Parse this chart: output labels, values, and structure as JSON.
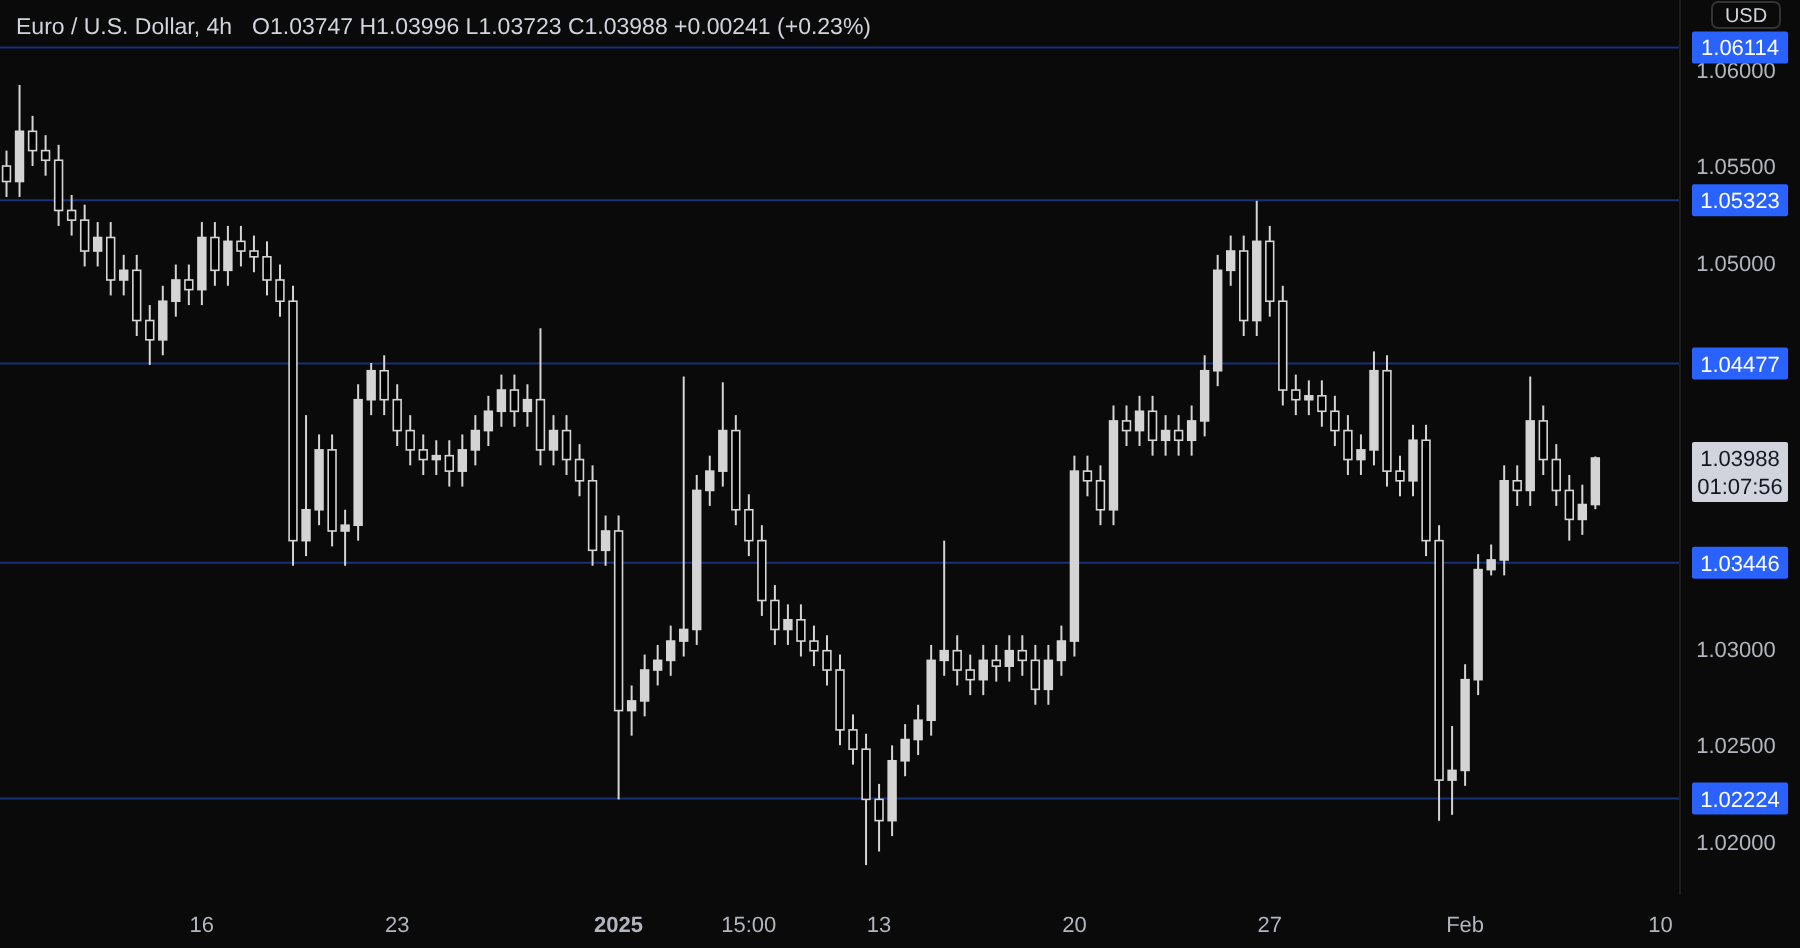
{
  "chart_data": {
    "type": "candlestick",
    "title": "Euro / U.S. Dollar, 4h",
    "subtitle": "O1.03747  H1.03996  L1.03723  C1.03988  +0.00241 (+0.23%)",
    "ylabel": "USD",
    "categories": [
      null,
      null,
      null,
      null,
      null,
      null,
      null,
      null,
      null,
      null,
      null,
      null,
      null,
      null,
      null,
      "16",
      null,
      null,
      null,
      null,
      null,
      null,
      null,
      null,
      null,
      null,
      null,
      null,
      null,
      null,
      "23",
      null,
      null,
      null,
      null,
      null,
      null,
      null,
      null,
      null,
      null,
      null,
      null,
      null,
      null,
      null,
      null,
      "2025",
      null,
      null,
      null,
      null,
      null,
      null,
      null,
      null,
      null,
      "15:00",
      null,
      null,
      null,
      null,
      null,
      null,
      null,
      null,
      null,
      "13",
      null,
      null,
      null,
      null,
      null,
      null,
      null,
      null,
      null,
      null,
      null,
      null,
      null,
      null,
      "20",
      null,
      null,
      null,
      null,
      null,
      null,
      null,
      null,
      null,
      null,
      null,
      null,
      null,
      null,
      "27",
      null,
      null,
      null,
      null,
      null,
      null,
      null,
      null,
      null,
      null,
      null,
      null,
      null,
      null,
      "Feb",
      null,
      null,
      null,
      null,
      null,
      null,
      null,
      null,
      null,
      null,
      null,
      null,
      null,
      null,
      "10",
      null
    ],
    "series": [
      {
        "color": "#d4d4d4",
        "ohlc": [
          [
            1.055,
            1.0558,
            1.0534,
            1.0542
          ],
          [
            1.0542,
            1.0592,
            1.0534,
            1.0568
          ],
          [
            1.0568,
            1.0576,
            1.055,
            1.0558
          ],
          [
            1.0558,
            1.0566,
            1.0545,
            1.0553
          ],
          [
            1.0553,
            1.0561,
            1.0519,
            1.0527
          ],
          [
            1.0527,
            1.0535,
            1.0514,
            1.0522
          ],
          [
            1.0522,
            1.053,
            1.0498,
            1.0506
          ],
          [
            1.0506,
            1.0521,
            1.0498,
            1.0513
          ],
          [
            1.0513,
            1.0521,
            1.0483,
            1.0491
          ],
          [
            1.0491,
            1.0504,
            1.0483,
            1.0496
          ],
          [
            1.0496,
            1.0504,
            1.0462,
            1.047
          ],
          [
            1.047,
            1.0478,
            1.0447,
            1.046
          ],
          [
            1.046,
            1.0488,
            1.0452,
            1.048
          ],
          [
            1.048,
            1.0499,
            1.0472,
            1.0491
          ],
          [
            1.0491,
            1.0499,
            1.0478,
            1.0486
          ],
          [
            1.0486,
            1.0521,
            1.0478,
            1.0513
          ],
          [
            1.0513,
            1.0521,
            1.0488,
            1.0496
          ],
          [
            1.0496,
            1.0519,
            1.0488,
            1.0511
          ],
          [
            1.0511,
            1.0519,
            1.0498,
            1.0506
          ],
          [
            1.0506,
            1.0514,
            1.0495,
            1.0503
          ],
          [
            1.0503,
            1.0511,
            1.0483,
            1.0491
          ],
          [
            1.0491,
            1.0499,
            1.0472,
            1.048
          ],
          [
            1.048,
            1.0488,
            1.0343,
            1.0356
          ],
          [
            1.0356,
            1.0421,
            1.0348,
            1.0372
          ],
          [
            1.0372,
            1.0411,
            1.0364,
            1.0403
          ],
          [
            1.0403,
            1.0411,
            1.0353,
            1.0361
          ],
          [
            1.0361,
            1.0372,
            1.0343,
            1.0364
          ],
          [
            1.0364,
            1.0437,
            1.0356,
            1.0429
          ],
          [
            1.0429,
            1.0448,
            1.0421,
            1.0444
          ],
          [
            1.0444,
            1.0452,
            1.0421,
            1.0429
          ],
          [
            1.0429,
            1.0437,
            1.0405,
            1.0413
          ],
          [
            1.0413,
            1.0421,
            1.0395,
            1.0403
          ],
          [
            1.0403,
            1.0411,
            1.039,
            1.0398
          ],
          [
            1.0398,
            1.0408,
            1.039,
            1.04
          ],
          [
            1.04,
            1.0408,
            1.0384,
            1.0392
          ],
          [
            1.0392,
            1.0411,
            1.0384,
            1.0403
          ],
          [
            1.0403,
            1.0421,
            1.0395,
            1.0413
          ],
          [
            1.0413,
            1.0431,
            1.0405,
            1.0423
          ],
          [
            1.0423,
            1.0442,
            1.0415,
            1.0434
          ],
          [
            1.0434,
            1.0442,
            1.0415,
            1.0423
          ],
          [
            1.0423,
            1.0437,
            1.0415,
            1.0429
          ],
          [
            1.0429,
            1.0466,
            1.0395,
            1.0403
          ],
          [
            1.0403,
            1.0421,
            1.0395,
            1.0413
          ],
          [
            1.0413,
            1.0421,
            1.039,
            1.0398
          ],
          [
            1.0398,
            1.0406,
            1.0379,
            1.0387
          ],
          [
            1.0387,
            1.0395,
            1.0343,
            1.0351
          ],
          [
            1.0351,
            1.0369,
            1.0343,
            1.0361
          ],
          [
            1.0361,
            1.0369,
            1.0222,
            1.0268
          ],
          [
            1.0268,
            1.0281,
            1.0255,
            1.0273
          ],
          [
            1.0273,
            1.0297,
            1.0265,
            1.0289
          ],
          [
            1.0289,
            1.0302,
            1.0281,
            1.0294
          ],
          [
            1.0294,
            1.0312,
            1.0286,
            1.0304
          ],
          [
            1.0304,
            1.0441,
            1.0296,
            1.031
          ],
          [
            1.031,
            1.039,
            1.0302,
            1.0382
          ],
          [
            1.0382,
            1.04,
            1.0374,
            1.0392
          ],
          [
            1.0392,
            1.0438,
            1.0384,
            1.0413
          ],
          [
            1.0413,
            1.0421,
            1.0364,
            1.0372
          ],
          [
            1.0372,
            1.038,
            1.0348,
            1.0356
          ],
          [
            1.0356,
            1.0364,
            1.0317,
            1.0325
          ],
          [
            1.0325,
            1.0333,
            1.0302,
            1.031
          ],
          [
            1.031,
            1.0323,
            1.0302,
            1.0315
          ],
          [
            1.0315,
            1.0323,
            1.0296,
            1.0304
          ],
          [
            1.0304,
            1.0312,
            1.0291,
            1.0299
          ],
          [
            1.0299,
            1.0307,
            1.0281,
            1.0289
          ],
          [
            1.0289,
            1.0297,
            1.025,
            1.0258
          ],
          [
            1.0258,
            1.0266,
            1.024,
            1.0248
          ],
          [
            1.0248,
            1.0256,
            1.0188,
            1.0222
          ],
          [
            1.0222,
            1.023,
            1.0195,
            1.0211
          ],
          [
            1.0211,
            1.025,
            1.0203,
            1.0242
          ],
          [
            1.0242,
            1.0261,
            1.0234,
            1.0253
          ],
          [
            1.0253,
            1.0271,
            1.0245,
            1.0263
          ],
          [
            1.0263,
            1.0302,
            1.0255,
            1.0294
          ],
          [
            1.0294,
            1.0356,
            1.0286,
            1.0299
          ],
          [
            1.0299,
            1.0307,
            1.0281,
            1.0289
          ],
          [
            1.0289,
            1.0297,
            1.0276,
            1.0284
          ],
          [
            1.0284,
            1.0302,
            1.0276,
            1.0294
          ],
          [
            1.0294,
            1.0302,
            1.0283,
            1.0291
          ],
          [
            1.0291,
            1.0307,
            1.0283,
            1.0299
          ],
          [
            1.0299,
            1.0307,
            1.0286,
            1.0294
          ],
          [
            1.0294,
            1.0302,
            1.0271,
            1.0279
          ],
          [
            1.0279,
            1.0302,
            1.0271,
            1.0294
          ],
          [
            1.0294,
            1.0312,
            1.0286,
            1.0304
          ],
          [
            1.0304,
            1.04,
            1.0296,
            1.0392
          ],
          [
            1.0392,
            1.04,
            1.0379,
            1.0387
          ],
          [
            1.0387,
            1.0395,
            1.0364,
            1.0372
          ],
          [
            1.0372,
            1.0426,
            1.0364,
            1.0418
          ],
          [
            1.0418,
            1.0426,
            1.0405,
            1.0413
          ],
          [
            1.0413,
            1.0431,
            1.0405,
            1.0423
          ],
          [
            1.0423,
            1.0431,
            1.04,
            1.0408
          ],
          [
            1.0408,
            1.0421,
            1.04,
            1.0413
          ],
          [
            1.0413,
            1.0421,
            1.04,
            1.0408
          ],
          [
            1.0408,
            1.0426,
            1.04,
            1.0418
          ],
          [
            1.0418,
            1.0452,
            1.041,
            1.0444
          ],
          [
            1.0444,
            1.0504,
            1.0436,
            1.0496
          ],
          [
            1.0496,
            1.0514,
            1.0488,
            1.0506
          ],
          [
            1.0506,
            1.0514,
            1.0462,
            1.047
          ],
          [
            1.047,
            1.0532,
            1.0462,
            1.0511
          ],
          [
            1.0511,
            1.0519,
            1.0472,
            1.048
          ],
          [
            1.048,
            1.0488,
            1.0426,
            1.0434
          ],
          [
            1.0434,
            1.0442,
            1.0421,
            1.0429
          ],
          [
            1.0429,
            1.0439,
            1.0421,
            1.0431
          ],
          [
            1.0431,
            1.0439,
            1.0415,
            1.0423
          ],
          [
            1.0423,
            1.0431,
            1.0405,
            1.0413
          ],
          [
            1.0413,
            1.0421,
            1.039,
            1.0398
          ],
          [
            1.0398,
            1.0411,
            1.039,
            1.0403
          ],
          [
            1.0403,
            1.0454,
            1.0395,
            1.0444
          ],
          [
            1.0444,
            1.0452,
            1.0384,
            1.0392
          ],
          [
            1.0392,
            1.04,
            1.0379,
            1.0387
          ],
          [
            1.0387,
            1.0416,
            1.0379,
            1.0408
          ],
          [
            1.0408,
            1.0416,
            1.0348,
            1.0356
          ],
          [
            1.0356,
            1.0364,
            1.0211,
            1.0232
          ],
          [
            1.0232,
            1.026,
            1.0214,
            1.0237
          ],
          [
            1.0237,
            1.0292,
            1.0229,
            1.0284
          ],
          [
            1.0284,
            1.0349,
            1.0276,
            1.0341
          ],
          [
            1.0341,
            1.0354,
            1.0338,
            1.0346
          ],
          [
            1.0346,
            1.0395,
            1.0338,
            1.0387
          ],
          [
            1.0387,
            1.0395,
            1.0374,
            1.0382
          ],
          [
            1.0382,
            1.0441,
            1.0374,
            1.0418
          ],
          [
            1.0418,
            1.0426,
            1.039,
            1.0398
          ],
          [
            1.0398,
            1.0406,
            1.0374,
            1.0382
          ],
          [
            1.0382,
            1.039,
            1.0356,
            1.0367
          ],
          [
            1.0367,
            1.0385,
            1.0359,
            1.03747
          ],
          [
            1.03747,
            1.03996,
            1.03723,
            1.03988
          ],
          null,
          null,
          null,
          null,
          null,
          null
        ]
      }
    ],
    "ylim": [
      1.0173,
      1.0636
    ],
    "yticks": [
      {
        "value": 1.02,
        "label": "1.02000"
      },
      {
        "value": 1.025,
        "label": "1.02500"
      },
      {
        "value": 1.03,
        "label": "1.03000"
      },
      {
        "value": 1.05,
        "label": "1.05000"
      },
      {
        "value": 1.055,
        "label": "1.05500"
      },
      {
        "value": 1.06,
        "label": "1.06000"
      }
    ],
    "ref_lines": [
      {
        "axis": "y",
        "value": 1.06114,
        "label": "1.06114",
        "color": "#2962ff"
      },
      {
        "axis": "y",
        "value": 1.05323,
        "label": "1.05323",
        "color": "#2962ff"
      },
      {
        "axis": "y",
        "value": 1.04477,
        "label": "1.04477",
        "color": "#2962ff"
      },
      {
        "axis": "y",
        "value": 1.03446,
        "label": "1.03446",
        "color": "#2962ff"
      },
      {
        "axis": "y",
        "value": 1.02224,
        "label": "1.02224",
        "color": "#2962ff"
      }
    ],
    "annotations": [
      "1.03988",
      "01:07:56"
    ],
    "grid": false
  }
}
